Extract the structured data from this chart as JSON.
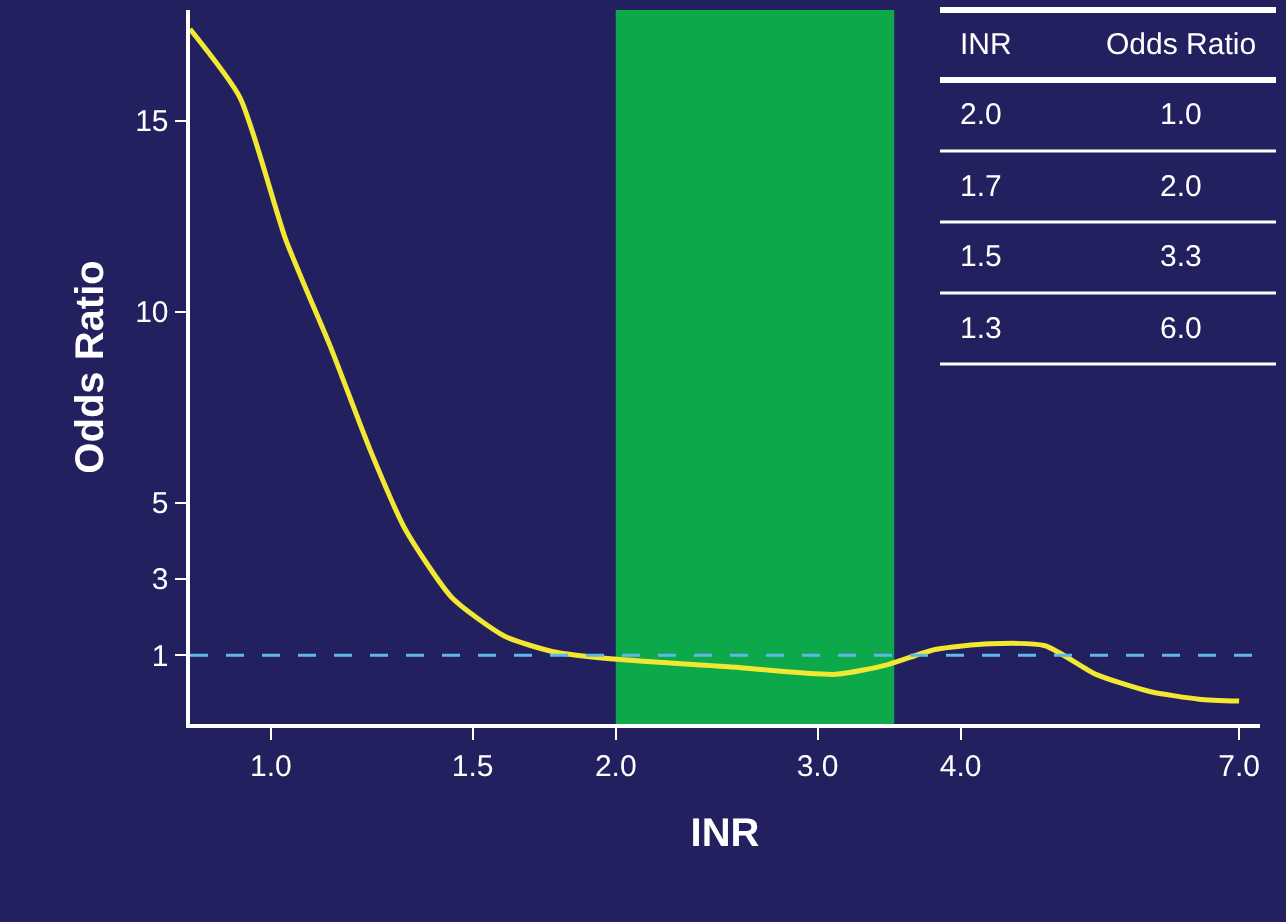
{
  "chart_data": [
    {
      "type": "line",
      "xlabel": "INR",
      "ylabel": "Odds Ratio",
      "log": "x",
      "x": [
        0.85,
        0.94,
        1.03,
        1.13,
        1.22,
        1.31,
        1.44,
        1.6,
        1.76,
        1.99,
        2.51,
        3.11,
        3.45,
        3.8,
        4.24,
        4.74,
        5.25,
        5.85,
        6.46,
        7.0
      ],
      "series": [
        {
          "color": "#f2e832",
          "values": [
            17.4,
            15.6,
            11.9,
            9.0,
            6.4,
            4.3,
            2.5,
            1.5,
            1.1,
            0.9,
            0.7,
            0.5,
            0.75,
            1.15,
            1.3,
            1.25,
            0.5,
            0.05,
            -0.15,
            -0.2
          ]
        }
      ],
      "xlim": [
        0.85,
        7.3
      ],
      "xticks": [
        {
          "value": 1,
          "label": "1.0"
        },
        {
          "value": 1.5,
          "label": "1.5"
        },
        {
          "value": 2,
          "label": "2.0"
        },
        {
          "value": 3,
          "label": "3.0"
        },
        {
          "value": 4,
          "label": "4.0"
        },
        {
          "value": 7,
          "label": "7.0"
        }
      ],
      "ylim": [
        -0.8,
        17.9
      ],
      "yticks": [
        1,
        3,
        5,
        10,
        15
      ],
      "ref_lines": [
        {
          "axis": "y",
          "value": 1,
          "color": "#5fb8e8",
          "line_style": "dashed"
        }
      ],
      "bands": [
        {
          "axis": "x",
          "from": 2.0,
          "to": 3.5,
          "color": "#0ca84a"
        }
      ],
      "grid": false,
      "legend": false,
      "marker": "none",
      "line_style": "solid"
    },
    {
      "type": "other",
      "annotations": [
        "INR",
        "Odds Ratio",
        "2.0",
        "1.0",
        "1.7",
        "2.0",
        "1.5",
        "3.3",
        "1.3",
        "6.0"
      ]
    }
  ]
}
